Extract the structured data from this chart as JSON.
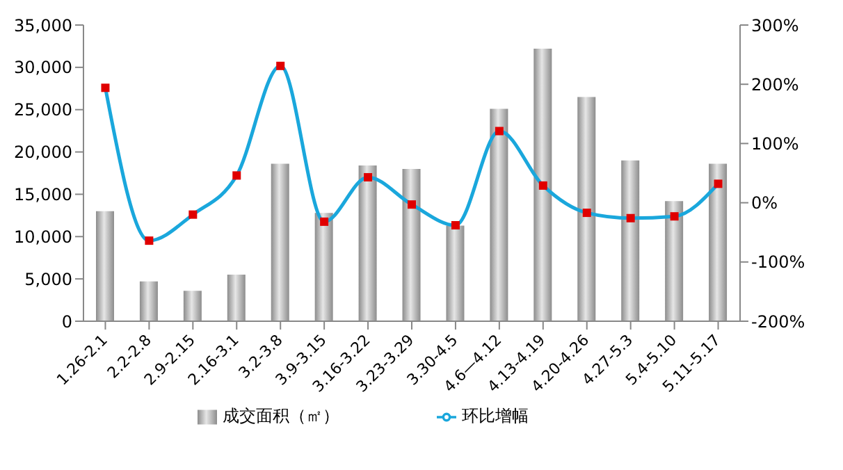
{
  "chart_data": {
    "type": "bar",
    "categories": [
      "1.26-2.1",
      "2.2-2.8",
      "2.9-2.15",
      "2.16-3.1",
      "3.2-3.8",
      "3.9-3.15",
      "3.16-3.22",
      "3.23-3.29",
      "3.30-4.5",
      "4.6—4.12",
      "4.13-4.19",
      "4.20-4.26",
      "4.27-5.3",
      "5.4-5.10",
      "5.11-5.17"
    ],
    "series": [
      {
        "name": "成交面积（㎡）",
        "color": "#8c8c8c",
        "values": [
          13000,
          4700,
          3600,
          5500,
          18600,
          12800,
          18400,
          18000,
          11300,
          25100,
          32200,
          26500,
          19000,
          14200,
          18600
        ]
      },
      {
        "name": "环比增幅",
        "type": "line",
        "axis": "y2",
        "color": "#1aa7dc",
        "colors": [
          "#e00000",
          "#e00000",
          "#e00000",
          "#e00000",
          "#e00000",
          "#e00000",
          "#e00000",
          "#e00000",
          "#e00000",
          "#e00000",
          "#e00000",
          "#e00000",
          "#e00000",
          "#e00000",
          "#e00000"
        ],
        "marker": "square",
        "values": [
          194,
          -64,
          -20,
          46,
          231,
          -32,
          43,
          -3,
          -38,
          121,
          29,
          -17,
          -26,
          -23,
          32
        ]
      }
    ],
    "ylim": [
      0,
      35000
    ],
    "yticks": [
      {
        "value": 0,
        "label": "0"
      },
      {
        "value": 5000,
        "label": "5,000"
      },
      {
        "value": 10000,
        "label": "10,000"
      },
      {
        "value": 15000,
        "label": "15,000"
      },
      {
        "value": 20000,
        "label": "20,000"
      },
      {
        "value": 25000,
        "label": "25,000"
      },
      {
        "value": 30000,
        "label": "30,000"
      },
      {
        "value": 35000,
        "label": "35,000"
      }
    ],
    "y2lim": [
      -200,
      300
    ],
    "y2ticks": [
      {
        "value": -200,
        "label": "-200%"
      },
      {
        "value": -100,
        "label": "-100%"
      },
      {
        "value": 0,
        "label": "0%"
      },
      {
        "value": 100,
        "label": "100%"
      },
      {
        "value": 200,
        "label": "200%"
      },
      {
        "value": 300,
        "label": "300%"
      }
    ],
    "grid": false,
    "legend": "bottom"
  }
}
